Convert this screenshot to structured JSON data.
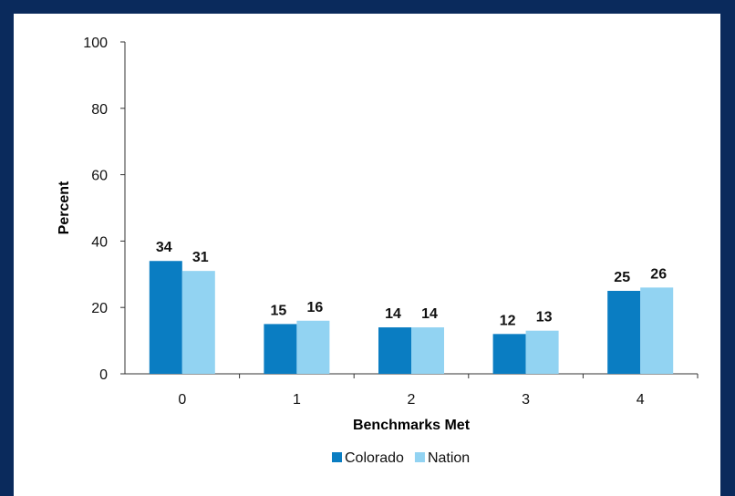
{
  "chart_data": {
    "type": "bar",
    "categories": [
      "0",
      "1",
      "2",
      "3",
      "4"
    ],
    "series": [
      {
        "name": "Colorado",
        "values": [
          34,
          15,
          14,
          12,
          25
        ],
        "color": "#0a7dc2"
      },
      {
        "name": "Nation",
        "values": [
          31,
          16,
          14,
          13,
          26
        ],
        "color": "#92d3f2"
      }
    ],
    "xlabel": "Benchmarks Met",
    "ylabel": "Percent",
    "ylim": [
      0,
      100
    ],
    "yticks": [
      0,
      20,
      40,
      60,
      80,
      100
    ],
    "legend_position": "bottom",
    "grid": false
  }
}
